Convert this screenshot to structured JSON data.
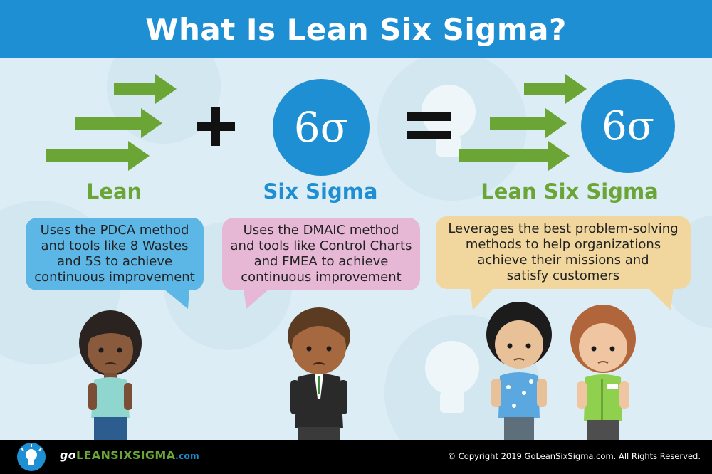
{
  "header": {
    "title": "What Is Lean Six Sigma?"
  },
  "columns": {
    "lean": {
      "title": "Lean",
      "bubble": [
        "Uses the PDCA method",
        "and tools like 8 Wastes",
        "and 5S to achieve",
        "continuous improvement"
      ]
    },
    "six_sigma": {
      "title": "Six Sigma",
      "symbol": "6σ",
      "bubble": [
        "Uses the DMAIC method",
        "and tools like Control Charts",
        "and FMEA to achieve",
        "continuous improvement"
      ]
    },
    "lean_six_sigma": {
      "title": "Lean Six Sigma",
      "symbol": "6σ",
      "bubble": [
        "Leverages the best problem-solving",
        "methods to help organizations",
        "achieve their missions and",
        "satisfy customers"
      ]
    }
  },
  "operators": {
    "plus": "+",
    "equals": "="
  },
  "footer": {
    "logo_go": "go",
    "logo_main": "LEANSIXSIGMA",
    "logo_com": ".com",
    "copyright": "© Copyright 2019 GoLeanSixSigma.com. All Rights Reserved."
  },
  "colors": {
    "header": "#1e8fd3",
    "green": "#6aa536",
    "blue": "#1e8fd3",
    "lean_bubble": "#5cb6e6",
    "sigma_bubble": "#e7b8d6",
    "lss_bubble": "#f1d79e"
  }
}
